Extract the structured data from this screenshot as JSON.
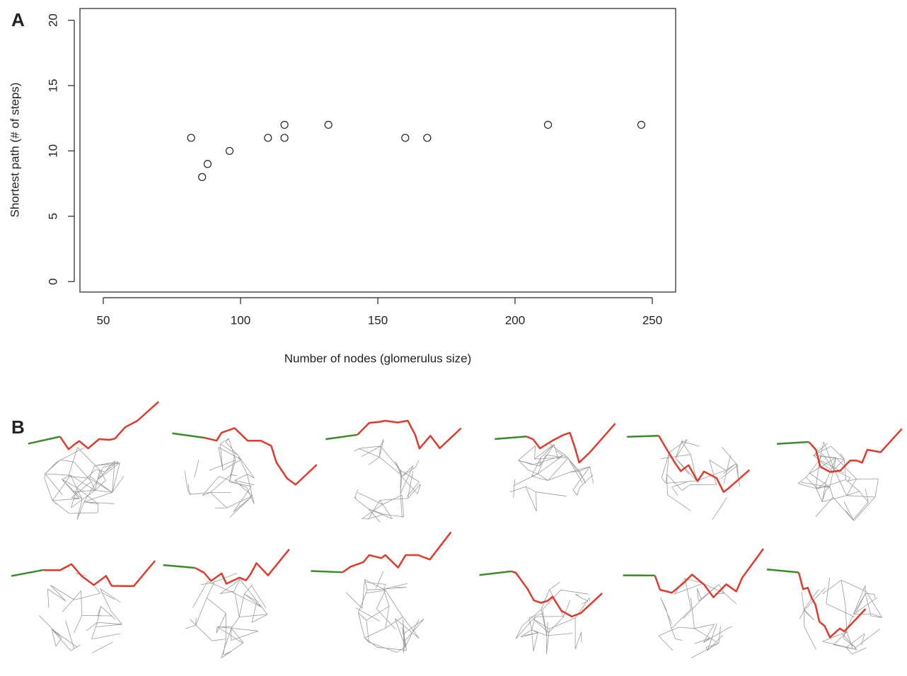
{
  "chart_data": {
    "type": "scatter",
    "panel_label": "A",
    "xlabel": "Number of nodes (glomerulus size)",
    "ylabel": "Shortest path (# of steps)",
    "x": [
      82,
      86,
      88,
      96,
      110,
      116,
      116,
      132,
      160,
      168,
      212,
      246
    ],
    "values": [
      11,
      8,
      9,
      10,
      11,
      12,
      11,
      12,
      11,
      11,
      12,
      12
    ],
    "xlim": [
      41.5,
      258.5
    ],
    "ylim": [
      -0.8,
      20.9
    ],
    "xticks": [
      50,
      100,
      150,
      200,
      250
    ],
    "yticks": [
      0,
      5,
      10,
      15,
      20
    ],
    "marker": "open-circle",
    "color": "#222222"
  },
  "figure_b": {
    "panel_label": "B"
  }
}
